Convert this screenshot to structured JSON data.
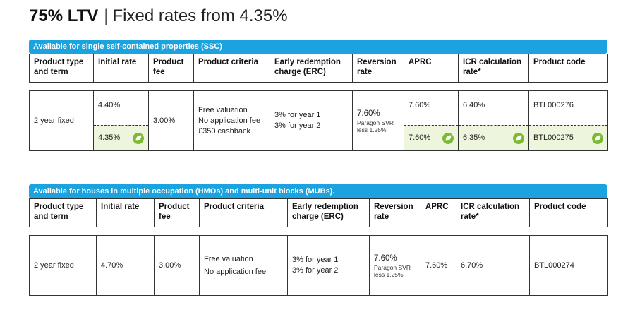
{
  "header": {
    "ltv": "75% LTV",
    "separator": "|",
    "subtitle": "Fixed rates from 4.35%"
  },
  "columns": {
    "product_type": "Product type and term",
    "initial_rate": "Initial rate",
    "product_fee": "Product fee",
    "product_criteria": "Product criteria",
    "erc": "Early redemption charge (ERC)",
    "reversion_rate": "Reversion rate",
    "aprc": "APRC",
    "icr": "ICR calculation rate*",
    "product_code": "Product code"
  },
  "section1": {
    "banner": "Available for single self-contained properties (SSC)",
    "row": {
      "term": "2 year fixed",
      "fee": "3.00%",
      "criteria": [
        "Free valuation",
        "No application fee",
        "£350 cashback"
      ],
      "erc": [
        "3% for year 1",
        "3% for year 2"
      ],
      "reversion_rate": "7.60%",
      "reversion_note": [
        "Paragon SVR",
        "less 1.25%"
      ],
      "variants": [
        {
          "initial_rate": "4.40%",
          "aprc": "7.60%",
          "icr": "6.40%",
          "code": "BTL000276"
        },
        {
          "initial_rate": "4.35%",
          "aprc": "7.60%",
          "icr": "6.35%",
          "code": "BTL000275"
        }
      ]
    }
  },
  "section2": {
    "banner": "Available for houses in multiple occupation (HMOs) and multi-unit blocks (MUBs).",
    "row": {
      "term": "2 year fixed",
      "initial_rate": "4.70%",
      "fee": "3.00%",
      "criteria": [
        "Free valuation",
        "No application fee"
      ],
      "erc": [
        "3% for year 1",
        "3% for year 2"
      ],
      "reversion_rate": "7.60%",
      "reversion_note": [
        "Paragon SVR",
        "less 1.25%"
      ],
      "aprc": "7.60%",
      "icr": "6.70%",
      "code": "BTL000274"
    }
  },
  "icons": {
    "green_product": "leaf-icon",
    "accent": "#1aa3de",
    "green": "#7cba33",
    "green_bg": "#eef5dd"
  }
}
